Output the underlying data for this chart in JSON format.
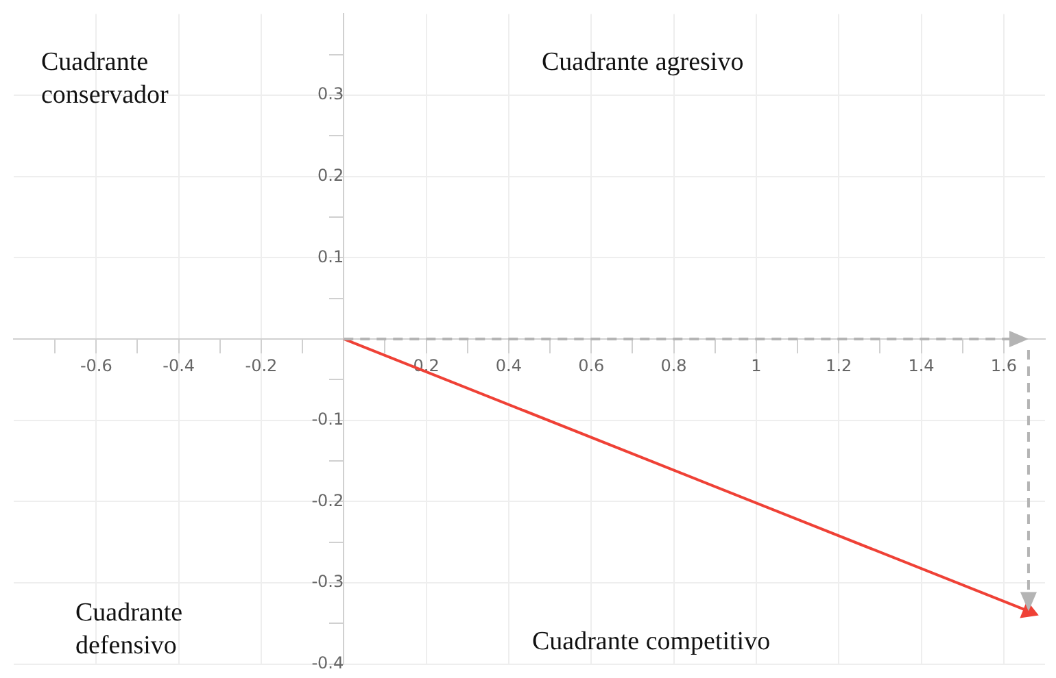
{
  "chart_data": {
    "type": "line",
    "annotations": [
      "Cuadrante conservador",
      "Cuadrante agresivo",
      "Cuadrante defensivo",
      "Cuadrante competitivo"
    ],
    "series": [
      {
        "x": [
          0,
          1.66
        ],
        "values": [
          0,
          -0.335
        ],
        "color": "#ef4136",
        "line_style": "solid",
        "marker": "triangle"
      }
    ],
    "xlim": [
      -0.8,
      1.7
    ],
    "ylim": [
      -0.4,
      0.4
    ],
    "xticks": [
      {
        "value": -0.7,
        "label": null
      },
      -0.6,
      {
        "value": -0.5,
        "label": null
      },
      -0.4,
      {
        "value": -0.3,
        "label": null
      },
      -0.2,
      {
        "value": -0.1,
        "label": null
      },
      {
        "value": 0,
        "label": null
      },
      {
        "value": 0.1,
        "label": null
      },
      0.2,
      {
        "value": 0.3,
        "label": null
      },
      0.4,
      {
        "value": 0.5,
        "label": null
      },
      0.6,
      {
        "value": 0.7,
        "label": null
      },
      0.8,
      {
        "value": 0.9,
        "label": null
      },
      1,
      {
        "value": 1.1,
        "label": null
      },
      1.2,
      {
        "value": 1.3,
        "label": null
      },
      1.4,
      {
        "value": 1.5,
        "label": null
      },
      1.6
    ],
    "yticks": [
      -0.4,
      {
        "value": -0.35,
        "label": null
      },
      -0.3,
      {
        "value": -0.25,
        "label": null
      },
      -0.2,
      {
        "value": -0.15,
        "label": null
      },
      -0.1,
      {
        "value": -0.05,
        "label": null
      },
      {
        "value": 0,
        "label": null
      },
      {
        "value": 0.05,
        "label": null
      },
      0.1,
      {
        "value": 0.15,
        "label": null
      },
      0.2,
      {
        "value": 0.25,
        "label": null
      },
      0.3,
      {
        "value": 0.35,
        "label": null
      }
    ],
    "grid": true,
    "legend": false
  }
}
